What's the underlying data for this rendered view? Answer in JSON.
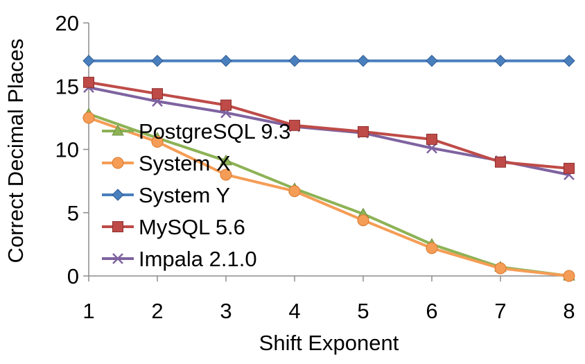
{
  "chart_data": {
    "type": "line",
    "title": "",
    "xlabel": "Shift Exponent",
    "ylabel": "Correct Decimal Places",
    "x": [
      1,
      2,
      3,
      4,
      5,
      6,
      7,
      8
    ],
    "xlim": [
      1,
      8
    ],
    "ylim": [
      0,
      20
    ],
    "yticks": [
      0,
      5,
      10,
      15,
      20
    ],
    "grid": false,
    "legend_position": "left",
    "series": [
      {
        "name": "PostgreSQL 9.3",
        "color": "#8DB255",
        "marker": "triangle",
        "values": [
          12.8,
          10.9,
          9.1,
          6.9,
          4.9,
          2.5,
          0.7,
          0.0
        ]
      },
      {
        "name": "System X",
        "color": "#F59D56",
        "marker": "circle",
        "values": [
          12.5,
          10.6,
          8.0,
          6.7,
          4.4,
          2.2,
          0.6,
          0.0
        ]
      },
      {
        "name": "System Y",
        "color": "#4A7FBE",
        "marker": "diamond",
        "values": [
          17.0,
          17.0,
          17.0,
          17.0,
          17.0,
          17.0,
          17.0,
          17.0
        ]
      },
      {
        "name": "MySQL 5.6",
        "color": "#BE4B48",
        "marker": "square",
        "values": [
          15.3,
          14.4,
          13.5,
          11.9,
          11.4,
          10.8,
          9.0,
          8.5
        ]
      },
      {
        "name": "Impala 2.1.0",
        "color": "#7E63A0",
        "marker": "x",
        "values": [
          14.9,
          13.8,
          12.9,
          11.8,
          11.3,
          10.1,
          9.1,
          8.0
        ]
      }
    ]
  }
}
